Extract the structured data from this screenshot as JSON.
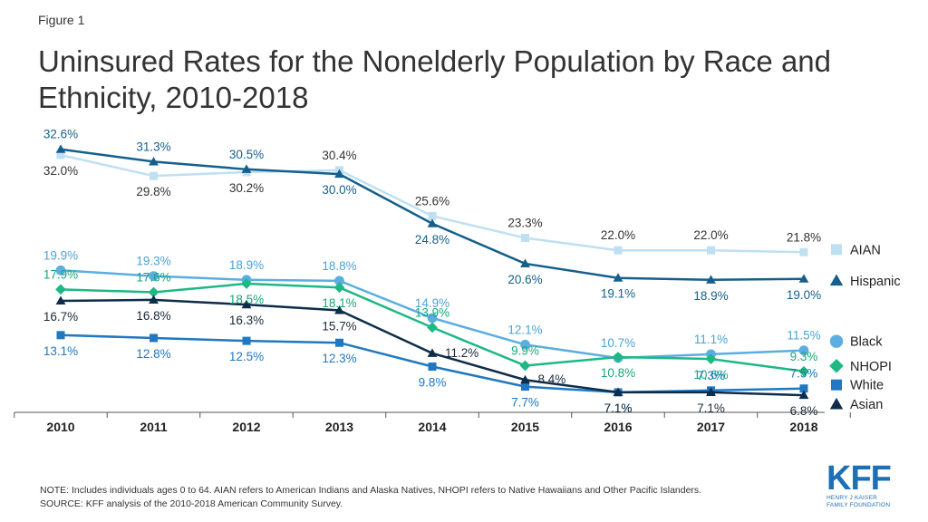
{
  "figure_label": "Figure 1",
  "title": "Uninsured Rates for the Nonelderly Population by Race and Ethnicity, 2010-2018",
  "note": "NOTE: Includes individuals ages 0 to 64. AIAN refers to American Indians and Alaska Natives, NHOPI refers to Native Hawaiians and Other Pacific Islanders.",
  "source": "SOURCE: KFF analysis of the 2010-2018 American Community Survey.",
  "logo": {
    "mark": "KFF",
    "line1": "HENRY J KAISER",
    "line2": "FAMILY FOUNDATION",
    "color": "#1f6fb5"
  },
  "chart_data": {
    "type": "line",
    "x": [
      "2010",
      "2011",
      "2012",
      "2013",
      "2014",
      "2015",
      "2016",
      "2017",
      "2018"
    ],
    "ylim": [
      5,
      34
    ],
    "grid": false,
    "legend_position": "right",
    "series": [
      {
        "name": "AIAN",
        "marker": "square",
        "color": "#bfe0f2",
        "values": [
          32.0,
          29.8,
          30.2,
          30.4,
          25.6,
          23.3,
          22.0,
          22.0,
          21.8
        ],
        "labels": [
          "32.0%",
          "29.8%",
          "30.2%",
          "30.4%",
          "25.6%",
          "23.3%",
          "22.0%",
          "22.0%",
          "21.8%"
        ],
        "label_color": "#333333"
      },
      {
        "name": "Hispanic",
        "marker": "triangle",
        "color": "#155f8c",
        "values": [
          32.6,
          31.3,
          30.5,
          30.0,
          24.8,
          20.6,
          19.1,
          18.9,
          19.0
        ],
        "labels": [
          "32.6%",
          "31.3%",
          "30.5%",
          "30.0%",
          "24.8%",
          "20.6%",
          "19.1%",
          "18.9%",
          "19.0%"
        ],
        "label_color": "#155f8c"
      },
      {
        "name": "Black",
        "marker": "circle",
        "color": "#5aaee0",
        "values": [
          19.9,
          19.3,
          18.9,
          18.8,
          14.9,
          12.1,
          10.7,
          11.1,
          11.5
        ],
        "labels": [
          "19.9%",
          "19.3%",
          "18.9%",
          "18.8%",
          "14.9%",
          "12.1%",
          "10.7%",
          "11.1%",
          "11.5%"
        ],
        "label_color": "#4ba3d6"
      },
      {
        "name": "NHOPI",
        "marker": "diamond",
        "color": "#1db884",
        "values": [
          17.9,
          17.6,
          18.5,
          18.1,
          13.9,
          9.9,
          10.8,
          10.6,
          9.3
        ],
        "labels": [
          "17.9%",
          "17.6%",
          "18.5%",
          "18.1%",
          "13.9%",
          "9.9%",
          "10.8%",
          "10.6%",
          "9.3%"
        ],
        "label_color": "#17a877"
      },
      {
        "name": "White",
        "marker": "square",
        "color": "#1f78c1",
        "values": [
          13.1,
          12.8,
          12.5,
          12.3,
          9.8,
          7.7,
          7.1,
          7.3,
          7.5
        ],
        "labels": [
          "13.1%",
          "12.8%",
          "12.5%",
          "12.3%",
          "9.8%",
          "7.7%",
          "7.1%",
          "7.3%",
          "7.5%"
        ],
        "label_color": "#1f78c1"
      },
      {
        "name": "Asian",
        "marker": "triangle",
        "color": "#0d2d4a",
        "values": [
          16.7,
          16.8,
          16.3,
          15.7,
          11.2,
          8.4,
          7.1,
          7.1,
          6.8
        ],
        "labels": [
          "16.7%",
          "16.8%",
          "16.3%",
          "15.7%",
          "11.2%",
          "8.4%",
          "7.1%",
          "7.1%",
          "6.8%"
        ],
        "label_color": "#1a2a3a"
      }
    ]
  }
}
